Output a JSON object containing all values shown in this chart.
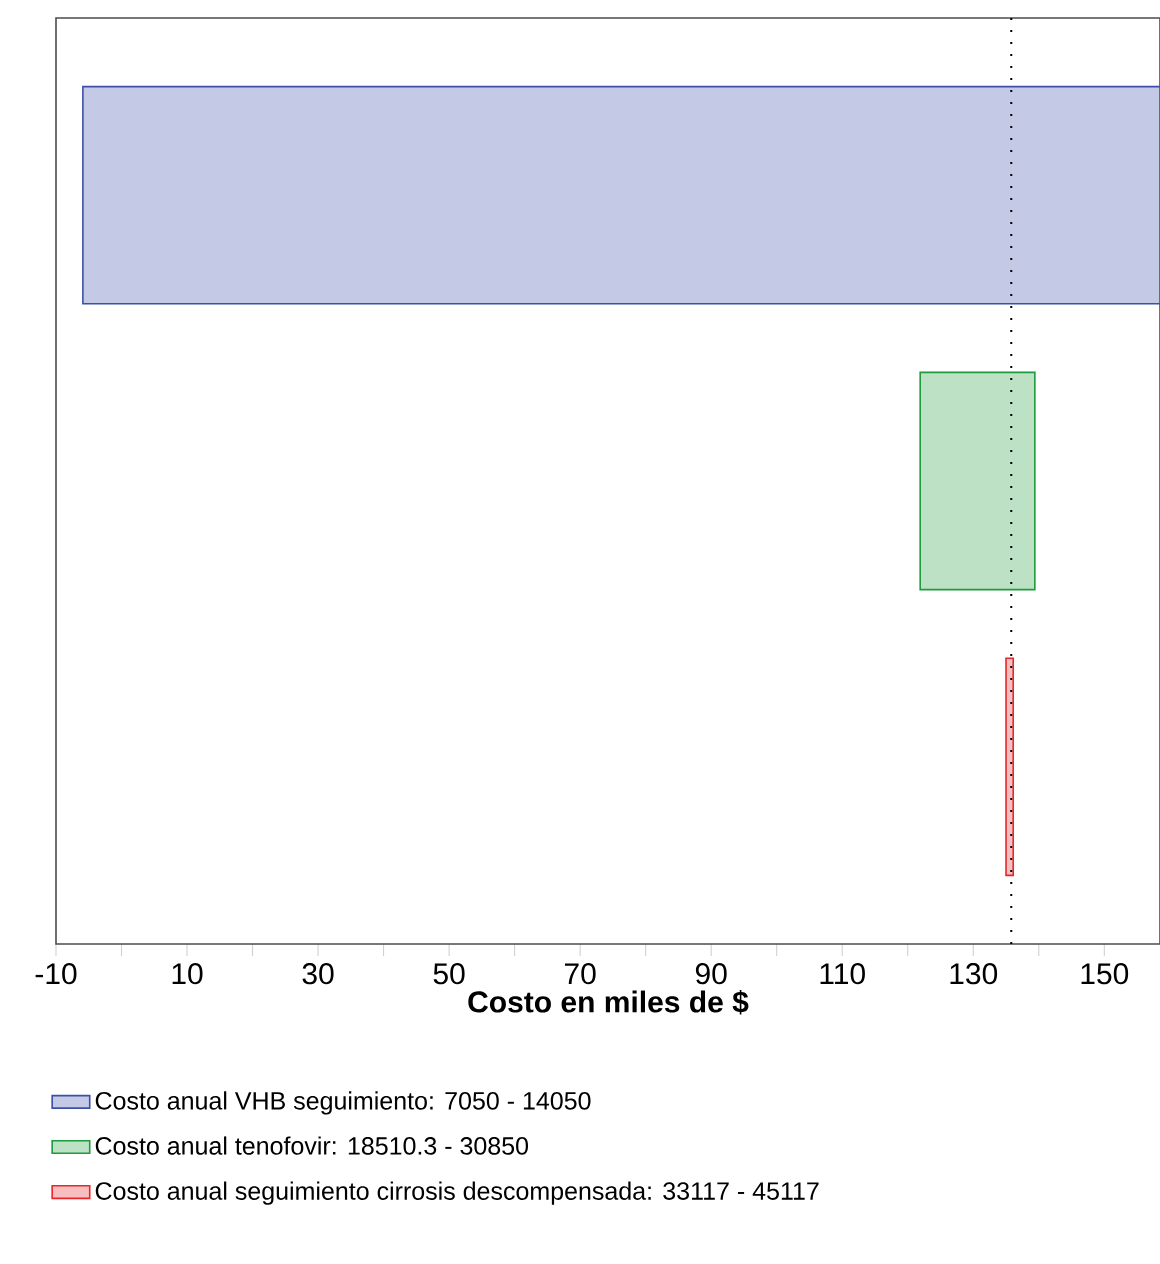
{
  "chart_data": {
    "type": "bar",
    "orientation": "horizontal",
    "xlabel": "Costo en miles de $",
    "categories": [
      null,
      null,
      null
    ],
    "series": [
      {
        "name": "Costo anual VHB seguimiento: 7050 - 14050",
        "color": "#3b4fa8",
        "values": [
          164.4,
          null,
          null
        ],
        "base": [
          -5.9,
          null,
          null
        ]
      },
      {
        "name": "Costo anual tenofovir: 18510.3 - 30850",
        "color": "#1f9a3c",
        "values": [
          null,
          17.5,
          null
        ],
        "base": [
          null,
          121.9,
          null
        ]
      },
      {
        "name": "Costo anual seguimiento cirrosis descompensada: 33117 - 45117",
        "color": "#e8262a",
        "values": [
          null,
          null,
          1.1
        ],
        "base": [
          null,
          null,
          135.0
        ]
      }
    ],
    "xlim": [
      -10,
      158.5
    ],
    "xticks": [
      -10,
      {
        "value": 0,
        "label": null
      },
      10,
      {
        "value": 20,
        "label": null
      },
      30,
      {
        "value": 40,
        "label": null
      },
      50,
      {
        "value": 60,
        "label": null
      },
      70,
      {
        "value": 80,
        "label": null
      },
      90,
      {
        "value": 100,
        "label": null
      },
      110,
      {
        "value": 120,
        "label": null
      },
      130,
      {
        "value": 140,
        "label": null
      },
      150
    ],
    "ref_lines": [
      {
        "axis": "x",
        "value": 135.8,
        "color": "#000000",
        "line_style": "dotted"
      }
    ],
    "tick_labels": "x",
    "legend": "bottom",
    "grid": false
  }
}
